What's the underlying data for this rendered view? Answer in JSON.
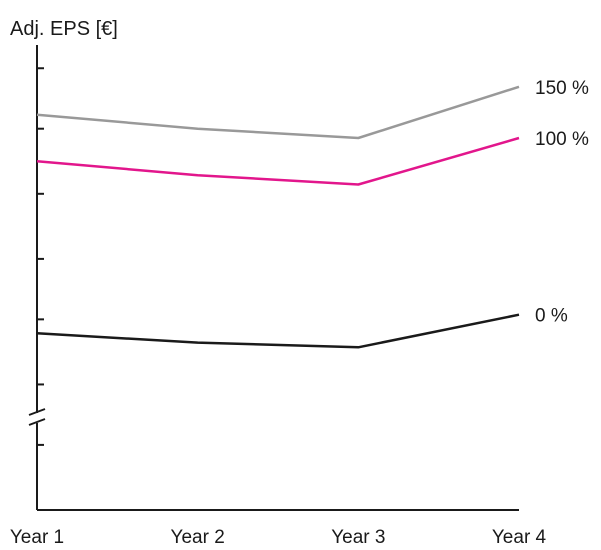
{
  "chart_data": {
    "type": "line",
    "title": "",
    "xlabel": "",
    "ylabel": "Adj. EPS [€]",
    "categories": [
      "Year 1",
      "Year 2",
      "Year 3",
      "Year 4"
    ],
    "y_scale": "broken axis, no numeric tick labels",
    "ylim": [
      0,
      100
    ],
    "axis_break": true,
    "legend": "none; series labels at right end of each line",
    "series": [
      {
        "name": "150 %",
        "values": [
          85,
          82,
          80,
          91
        ],
        "color": "#999999"
      },
      {
        "name": "100 %",
        "values": [
          75,
          72,
          70,
          80
        ],
        "color": "#e2168c"
      },
      {
        "name": "0 %",
        "values": [
          38,
          36,
          35,
          42
        ],
        "color": "#1a1a1a"
      }
    ],
    "y_ticks": [
      0,
      14,
      27,
      41,
      54,
      68,
      82,
      95
    ],
    "grid": false
  }
}
